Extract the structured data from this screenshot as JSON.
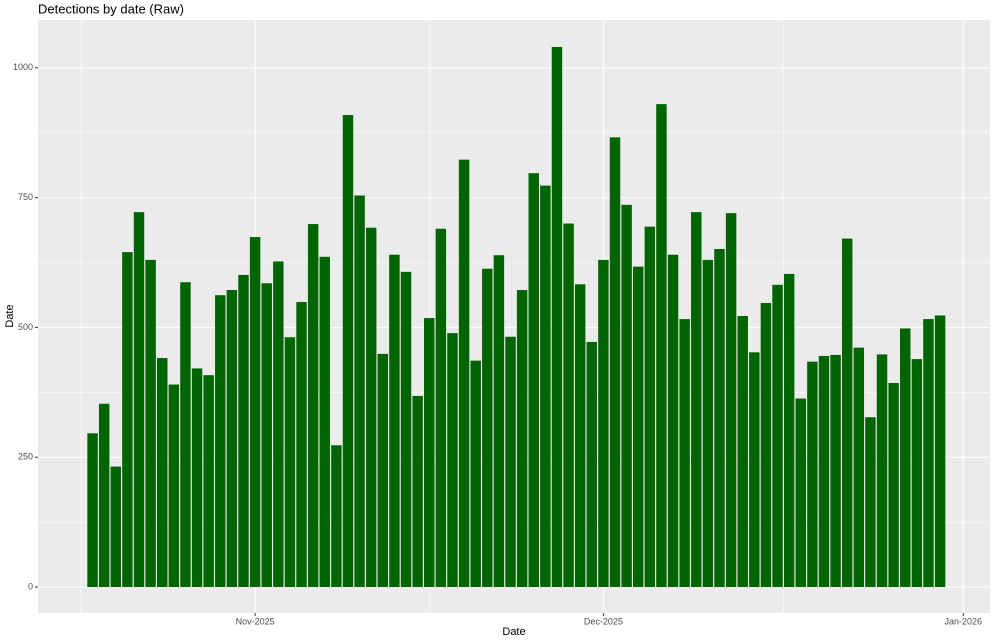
{
  "chart_data": {
    "type": "bar",
    "title": "Detections by date (Raw)",
    "x_label": "Date",
    "y_label": "Date",
    "categories": [
      null,
      null,
      null,
      null,
      null,
      null,
      null,
      null,
      null,
      null,
      null,
      null,
      null,
      null,
      null,
      null,
      null,
      null,
      null,
      null,
      null,
      null,
      null,
      null,
      null,
      null,
      null,
      null,
      null,
      null,
      null,
      null,
      null,
      null,
      null,
      null,
      null,
      null,
      null,
      null,
      null,
      null,
      null,
      null,
      null,
      null,
      null,
      null,
      null,
      null,
      null,
      null,
      null,
      null,
      null,
      null,
      null,
      null,
      null,
      null,
      null,
      null,
      null,
      null,
      null,
      null,
      null,
      null,
      null,
      null,
      null,
      null,
      null,
      null
    ],
    "values": [
      296,
      353,
      232,
      645,
      722,
      630,
      441,
      390,
      587,
      421,
      408,
      562,
      572,
      601,
      674,
      585,
      627,
      481,
      549,
      699,
      636,
      273,
      909,
      754,
      692,
      449,
      640,
      607,
      368,
      518,
      690,
      489,
      823,
      436,
      613,
      639,
      482,
      572,
      797,
      773,
      1040,
      700,
      583,
      472,
      630,
      866,
      736,
      617,
      694,
      930,
      640,
      516,
      722,
      630,
      651,
      720,
      522,
      452,
      547,
      582,
      603,
      363,
      434,
      445,
      447,
      671,
      461,
      327,
      448,
      393,
      498,
      439,
      516,
      523
    ],
    "color": "#006400",
    "xlim": [
      -4.7,
      77.3
    ],
    "xticks": [
      {
        "value": 14,
        "label": "Nov-2025"
      },
      {
        "value": 44,
        "label": "Dec-2025"
      },
      {
        "value": 75,
        "label": "Jan-2026"
      }
    ],
    "ylim": [
      -50,
      1092
    ],
    "yticks": [
      0,
      250,
      500,
      750,
      1000
    ],
    "grid": true
  }
}
